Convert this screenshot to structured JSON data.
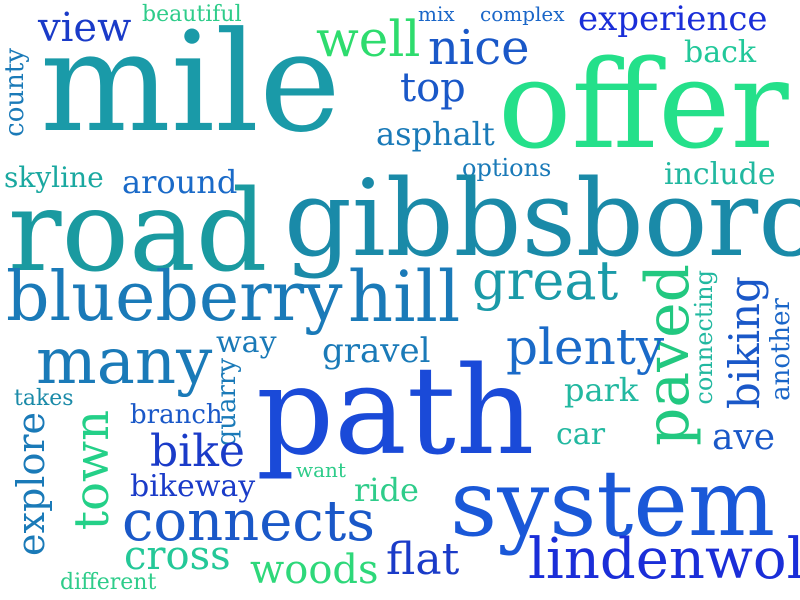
{
  "words": [
    {
      "text": "beautiful",
      "color": "#2ecc8a"
    },
    {
      "text": "view",
      "color": "#1a3bc8"
    },
    {
      "text": "mix",
      "color": "#1a66c8"
    },
    {
      "text": "complex",
      "color": "#1a66c8"
    },
    {
      "text": "experience",
      "color": "#1a2ed8"
    },
    {
      "text": "well",
      "color": "#2edc6e"
    },
    {
      "text": "nice",
      "color": "#1a58c8"
    },
    {
      "text": "back",
      "color": "#22c89a"
    },
    {
      "text": "mile",
      "color": "#1a9aa8"
    },
    {
      "text": "offer",
      "color": "#24e08a"
    },
    {
      "text": "top",
      "color": "#1a58c8"
    },
    {
      "text": "asphalt",
      "color": "#1a7ab8"
    },
    {
      "text": "county",
      "color": "#1a7ab8"
    },
    {
      "text": "skyline",
      "color": "#1aa8a0"
    },
    {
      "text": "around",
      "color": "#1a6ac8"
    },
    {
      "text": "options",
      "color": "#1a7ab8"
    },
    {
      "text": "include",
      "color": "#22b8a0"
    },
    {
      "text": "road",
      "color": "#1a9aa0"
    },
    {
      "text": "gibbsboro",
      "color": "#1a8aa8"
    },
    {
      "text": "great",
      "color": "#1a9aa8"
    },
    {
      "text": "blueberry",
      "color": "#1a7ab8"
    },
    {
      "text": "hill",
      "color": "#1a7ab8"
    },
    {
      "text": "paved",
      "color": "#22c880"
    },
    {
      "text": "connecting",
      "color": "#22b8a0"
    },
    {
      "text": "biking",
      "color": "#1a58c8"
    },
    {
      "text": "another",
      "color": "#1a66c8"
    },
    {
      "text": "many",
      "color": "#1a7ab8"
    },
    {
      "text": "way",
      "color": "#1a7ab8"
    },
    {
      "text": "gravel",
      "color": "#1a7ab8"
    },
    {
      "text": "plenty",
      "color": "#1a6ac8"
    },
    {
      "text": "path",
      "color": "#1a4ad8"
    },
    {
      "text": "quarry",
      "color": "#1a7ab8"
    },
    {
      "text": "takes",
      "color": "#1a8aa8"
    },
    {
      "text": "park",
      "color": "#22b8a0"
    },
    {
      "text": "branch",
      "color": "#1a58c8"
    },
    {
      "text": "explore",
      "color": "#1a7ab8"
    },
    {
      "text": "town",
      "color": "#24d088"
    },
    {
      "text": "car",
      "color": "#22b8a0"
    },
    {
      "text": "ave",
      "color": "#1a58c8"
    },
    {
      "text": "bike",
      "color": "#1a3bc8"
    },
    {
      "text": "want",
      "color": "#2ecc8a"
    },
    {
      "text": "system",
      "color": "#1a58d8"
    },
    {
      "text": "ride",
      "color": "#2ecc8a"
    },
    {
      "text": "bikeway",
      "color": "#1a3bc8"
    },
    {
      "text": "connects",
      "color": "#1a58c8"
    },
    {
      "text": "cross",
      "color": "#24c898"
    },
    {
      "text": "woods",
      "color": "#2ed87a"
    },
    {
      "text": "flat",
      "color": "#1a3bc8"
    },
    {
      "text": "lindenwold",
      "color": "#1a2ed8"
    },
    {
      "text": "different",
      "color": "#2ecc8a"
    }
  ]
}
